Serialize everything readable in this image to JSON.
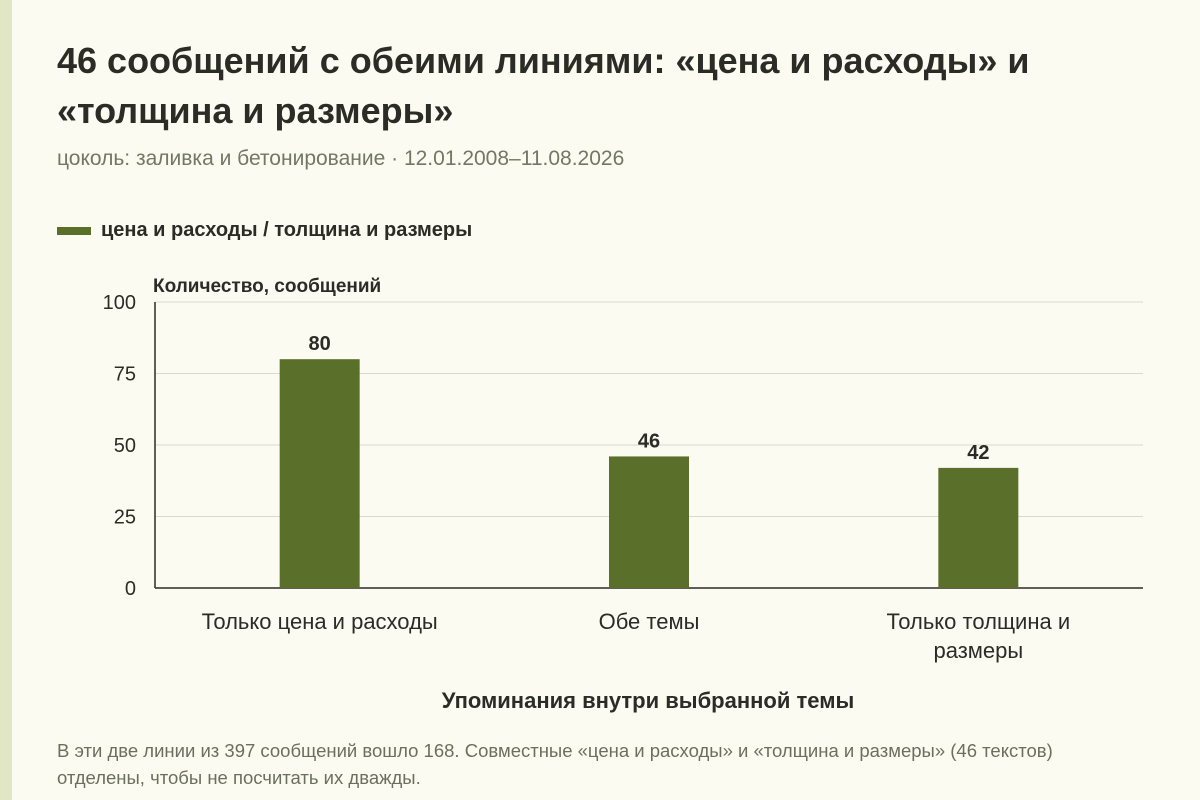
{
  "title": "46 сообщений с обеими линиями: «цена и расходы» и «толщина и размеры»",
  "subtitle": "цоколь: заливка и бетонирование · 12.01.2008–11.08.2026",
  "legend": {
    "label": "цена и расходы / толщина и размеры"
  },
  "colors": {
    "bar": "#5a6f2a",
    "background": "#fcfbf1",
    "accent_strip": "#e1e6c4",
    "text": "#2a2c25",
    "muted": "#727766"
  },
  "chart_data": {
    "type": "bar",
    "title": "46 сообщений с обеими линиями: «цена и расходы» и «толщина и размеры»",
    "xlabel": "Упоминания внутри выбранной темы",
    "ylabel": "Количество, сообщений",
    "categories": [
      [
        "Только цена и расходы"
      ],
      [
        "Обе темы"
      ],
      [
        "Только толщина и",
        "размеры"
      ]
    ],
    "values": [
      80,
      46,
      42
    ],
    "ylim": [
      0,
      100
    ],
    "yticks": [
      0,
      25,
      50,
      75,
      100
    ],
    "grid": true,
    "legend_position": "top-left"
  },
  "note": "В эти две линии из 397 сообщений вошло 168. Совместные «цена и расходы» и «толщина и размеры» (46 текстов) отделены, чтобы не посчитать их дважды."
}
